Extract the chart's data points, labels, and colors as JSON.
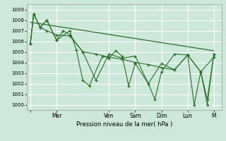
{
  "xlabel": "Pression niveau de la mer( hPa )",
  "bg_color": "#cce8d8",
  "line_color": "#2d6e2d",
  "grid_color": "#ffffff",
  "ylim": [
    999.5,
    1009.5
  ],
  "yticks": [
    1000,
    1001,
    1002,
    1003,
    1004,
    1005,
    1006,
    1007,
    1008,
    1009
  ],
  "xlim": [
    -3,
    175
  ],
  "day_labels": [
    "",
    "Mer",
    "Ven",
    "Sam",
    "Dim",
    "Lun",
    "M"
  ],
  "day_positions": [
    0,
    24,
    72,
    96,
    120,
    144,
    168
  ],
  "series1_x": [
    0,
    3,
    9,
    15,
    24,
    30,
    36,
    48,
    60,
    72,
    84,
    96,
    108,
    120,
    132,
    144,
    156,
    162,
    168
  ],
  "series1_y": [
    1005.8,
    1008.6,
    1007.3,
    1008.0,
    1006.1,
    1007.0,
    1006.6,
    1005.0,
    1002.3,
    1004.8,
    1004.4,
    1004.6,
    1002.0,
    1003.9,
    1003.3,
    1004.7,
    1003.1,
    1000.0,
    1004.8
  ],
  "series2_x": [
    0,
    3,
    9,
    15,
    24,
    36,
    42,
    48,
    54,
    66,
    72,
    78,
    84,
    90,
    96,
    108,
    114,
    120,
    132,
    144,
    150,
    156,
    162,
    168
  ],
  "series2_y": [
    1005.8,
    1008.6,
    1007.3,
    1008.0,
    1006.1,
    1007.0,
    1005.2,
    1002.3,
    1001.8,
    1004.6,
    1004.4,
    1005.1,
    1004.6,
    1001.8,
    1003.9,
    1002.0,
    1000.5,
    1003.1,
    1004.8,
    1004.7,
    1000.0,
    1003.1,
    1000.5,
    1004.8
  ],
  "series3_x": [
    0,
    3,
    9,
    15,
    24,
    36,
    48,
    60,
    72,
    84,
    96,
    108,
    120,
    132,
    144,
    156,
    168
  ],
  "series3_y": [
    1005.8,
    1008.6,
    1007.3,
    1007.0,
    1006.6,
    1006.5,
    1005.0,
    1004.8,
    1004.5,
    1004.3,
    1004.0,
    1003.8,
    1003.5,
    1003.3,
    1004.7,
    1003.1,
    1004.5
  ],
  "trend_x": [
    0,
    168
  ],
  "trend_y": [
    1007.8,
    1005.1
  ]
}
